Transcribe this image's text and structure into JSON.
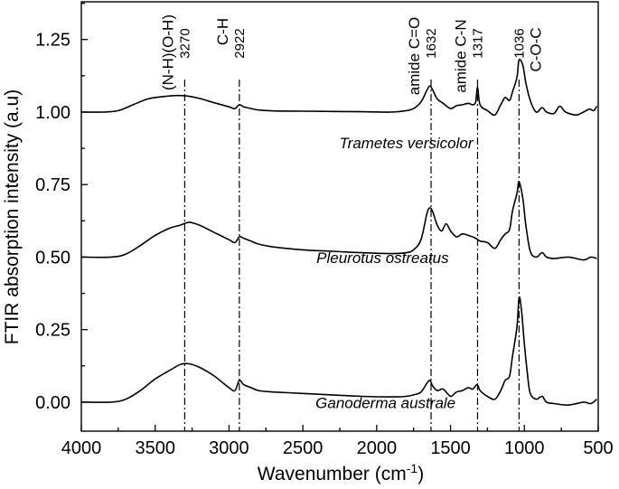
{
  "chart_data": {
    "type": "line",
    "title": "",
    "xlabel": "Wavenumber (cm",
    "xlabel_sup": "-1",
    "xlabel_end": ")",
    "ylabel": "FTIR absorption intensity (a.u)",
    "xlim": [
      4000,
      500
    ],
    "ylim": [
      -0.1,
      1.38
    ],
    "x_ticks": [
      4000,
      3500,
      3000,
      2500,
      2000,
      1500,
      1000,
      500
    ],
    "x_tick_labels": [
      "4000",
      "3500",
      "3000",
      "2500",
      "2000",
      "1500",
      "1000",
      "500"
    ],
    "y_ticks": [
      0.0,
      0.25,
      0.5,
      0.75,
      1.0,
      1.25
    ],
    "y_tick_labels": [
      "0.00",
      "0.25",
      "0.50",
      "0.75",
      "1.00",
      "1.25"
    ],
    "grid": false,
    "peaks": [
      {
        "x": 3300,
        "label": "(N-H)(O-H)",
        "number": "3270"
      },
      {
        "x": 2930,
        "label": "C-H",
        "number": "2922"
      },
      {
        "x": 1632,
        "label": "amide C=O",
        "number": "1632"
      },
      {
        "x": 1317,
        "label": "amide C-N",
        "number": "1317"
      },
      {
        "x": 1036,
        "label": "C-O-C",
        "number": "1036"
      }
    ],
    "series": [
      {
        "name": "Trametes versicolor",
        "offset": 1.0,
        "points": [
          [
            4000,
            0.0
          ],
          [
            3850,
            0.0
          ],
          [
            3750,
            0.005
          ],
          [
            3650,
            0.025
          ],
          [
            3550,
            0.045
          ],
          [
            3450,
            0.053
          ],
          [
            3350,
            0.057
          ],
          [
            3280,
            0.055
          ],
          [
            3200,
            0.047
          ],
          [
            3100,
            0.032
          ],
          [
            3000,
            0.018
          ],
          [
            2960,
            0.012
          ],
          [
            2930,
            0.025
          ],
          [
            2900,
            0.018
          ],
          [
            2850,
            0.012
          ],
          [
            2800,
            0.007
          ],
          [
            2700,
            0.004
          ],
          [
            2500,
            0.003
          ],
          [
            2300,
            0.002
          ],
          [
            2100,
            0.001
          ],
          [
            1900,
            0.0
          ],
          [
            1800,
            0.005
          ],
          [
            1750,
            0.012
          ],
          [
            1700,
            0.035
          ],
          [
            1660,
            0.075
          ],
          [
            1640,
            0.09
          ],
          [
            1620,
            0.075
          ],
          [
            1590,
            0.045
          ],
          [
            1550,
            0.03
          ],
          [
            1500,
            0.012
          ],
          [
            1460,
            0.022
          ],
          [
            1420,
            0.025
          ],
          [
            1380,
            0.03
          ],
          [
            1350,
            0.025
          ],
          [
            1330,
            0.035
          ],
          [
            1317,
            0.085
          ],
          [
            1300,
            0.025
          ],
          [
            1250,
            0.005
          ],
          [
            1200,
            -0.01
          ],
          [
            1160,
            0.025
          ],
          [
            1130,
            0.05
          ],
          [
            1100,
            0.04
          ],
          [
            1080,
            0.07
          ],
          [
            1050,
            0.12
          ],
          [
            1036,
            0.18
          ],
          [
            1010,
            0.16
          ],
          [
            990,
            0.1
          ],
          [
            960,
            0.04
          ],
          [
            920,
            0.0
          ],
          [
            880,
            0.015
          ],
          [
            850,
            0.0
          ],
          [
            800,
            -0.005
          ],
          [
            760,
            0.02
          ],
          [
            720,
            0.0
          ],
          [
            650,
            -0.01
          ],
          [
            600,
            0.0
          ],
          [
            560,
            0.01
          ],
          [
            530,
            0.005
          ],
          [
            510,
            0.02
          ]
        ]
      },
      {
        "name": "Pleurotus ostreatus",
        "offset": 0.5,
        "points": [
          [
            4000,
            0.0
          ],
          [
            3800,
            0.0
          ],
          [
            3700,
            0.01
          ],
          [
            3600,
            0.04
          ],
          [
            3500,
            0.075
          ],
          [
            3400,
            0.1
          ],
          [
            3330,
            0.11
          ],
          [
            3270,
            0.12
          ],
          [
            3200,
            0.11
          ],
          [
            3100,
            0.085
          ],
          [
            3000,
            0.06
          ],
          [
            2960,
            0.05
          ],
          [
            2930,
            0.07
          ],
          [
            2900,
            0.065
          ],
          [
            2850,
            0.055
          ],
          [
            2800,
            0.045
          ],
          [
            2700,
            0.035
          ],
          [
            2500,
            0.025
          ],
          [
            2300,
            0.02
          ],
          [
            2100,
            0.015
          ],
          [
            1900,
            0.012
          ],
          [
            1800,
            0.015
          ],
          [
            1750,
            0.025
          ],
          [
            1700,
            0.06
          ],
          [
            1660,
            0.15
          ],
          [
            1640,
            0.17
          ],
          [
            1620,
            0.155
          ],
          [
            1590,
            0.11
          ],
          [
            1560,
            0.09
          ],
          [
            1530,
            0.115
          ],
          [
            1500,
            0.09
          ],
          [
            1460,
            0.07
          ],
          [
            1420,
            0.08
          ],
          [
            1380,
            0.075
          ],
          [
            1330,
            0.065
          ],
          [
            1300,
            0.055
          ],
          [
            1250,
            0.05
          ],
          [
            1200,
            0.03
          ],
          [
            1160,
            0.06
          ],
          [
            1130,
            0.08
          ],
          [
            1100,
            0.095
          ],
          [
            1080,
            0.16
          ],
          [
            1050,
            0.22
          ],
          [
            1036,
            0.26
          ],
          [
            1010,
            0.2
          ],
          [
            990,
            0.11
          ],
          [
            960,
            0.02
          ],
          [
            920,
            0.0
          ],
          [
            880,
            0.015
          ],
          [
            850,
            0.0
          ],
          [
            800,
            -0.005
          ],
          [
            700,
            0.0
          ],
          [
            600,
            -0.01
          ],
          [
            550,
            0.0
          ],
          [
            510,
            -0.005
          ]
        ]
      },
      {
        "name": "Ganoderma australe",
        "offset": 0.0,
        "points": [
          [
            4000,
            0.0
          ],
          [
            3800,
            0.0
          ],
          [
            3700,
            0.01
          ],
          [
            3600,
            0.04
          ],
          [
            3500,
            0.08
          ],
          [
            3400,
            0.11
          ],
          [
            3330,
            0.13
          ],
          [
            3270,
            0.132
          ],
          [
            3200,
            0.12
          ],
          [
            3100,
            0.09
          ],
          [
            3000,
            0.05
          ],
          [
            2960,
            0.04
          ],
          [
            2930,
            0.075
          ],
          [
            2900,
            0.06
          ],
          [
            2850,
            0.05
          ],
          [
            2800,
            0.04
          ],
          [
            2700,
            0.035
          ],
          [
            2500,
            0.03
          ],
          [
            2300,
            0.025
          ],
          [
            2100,
            0.02
          ],
          [
            1900,
            0.018
          ],
          [
            1800,
            0.02
          ],
          [
            1750,
            0.025
          ],
          [
            1700,
            0.035
          ],
          [
            1660,
            0.065
          ],
          [
            1640,
            0.075
          ],
          [
            1620,
            0.055
          ],
          [
            1590,
            0.04
          ],
          [
            1550,
            0.045
          ],
          [
            1500,
            0.02
          ],
          [
            1460,
            0.035
          ],
          [
            1420,
            0.04
          ],
          [
            1380,
            0.05
          ],
          [
            1350,
            0.045
          ],
          [
            1320,
            0.06
          ],
          [
            1300,
            0.04
          ],
          [
            1250,
            0.02
          ],
          [
            1200,
            0.01
          ],
          [
            1160,
            0.04
          ],
          [
            1130,
            0.075
          ],
          [
            1100,
            0.09
          ],
          [
            1080,
            0.16
          ],
          [
            1050,
            0.26
          ],
          [
            1036,
            0.36
          ],
          [
            1020,
            0.32
          ],
          [
            1000,
            0.2
          ],
          [
            980,
            0.1
          ],
          [
            960,
            0.03
          ],
          [
            920,
            0.01
          ],
          [
            880,
            0.02
          ],
          [
            850,
            0.0
          ],
          [
            800,
            -0.005
          ],
          [
            700,
            -0.01
          ],
          [
            600,
            0.0
          ],
          [
            550,
            -0.005
          ],
          [
            510,
            0.01
          ]
        ]
      }
    ],
    "series_labels": [
      {
        "text": "Trametes versicolor",
        "x": 1800,
        "y": 0.875
      },
      {
        "text": "Pleurotus ostreatus",
        "x": 1960,
        "y": 0.48
      },
      {
        "text": "Ganoderma australe",
        "x": 1940,
        "y": -0.02
      }
    ]
  }
}
